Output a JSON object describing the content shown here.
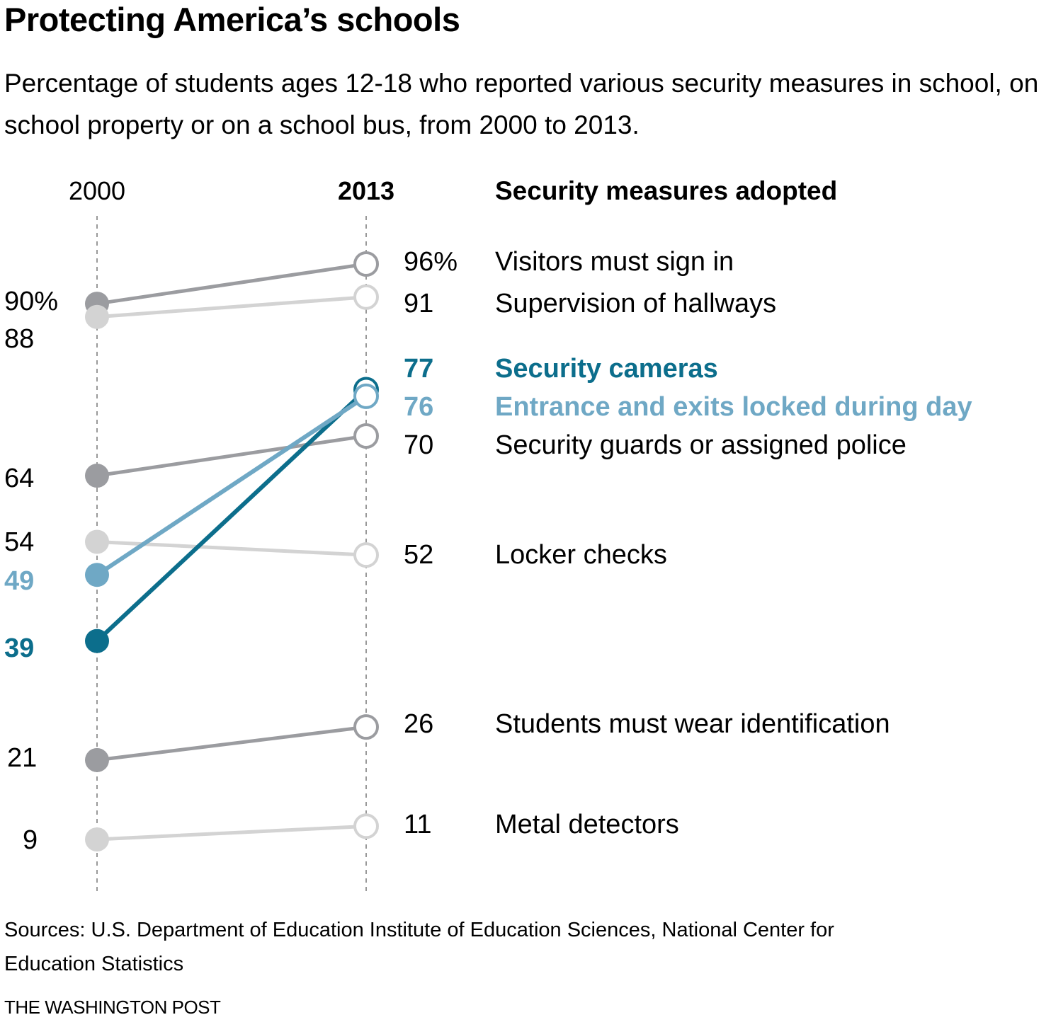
{
  "title": "Protecting America’s schools",
  "subtitle": "Percentage of students ages 12-18 who reported various security measures in school, on school property or on a school bus, from 2000 to 2013.",
  "source": "Sources: U.S. Department of Education Institute of Education Sciences, National Center for Education Statistics",
  "credit": "THE WASHINGTON POST",
  "colors": {
    "dark_gray": "#9b9ca0",
    "light_gray": "#d3d3d3",
    "dark_teal": "#0c6e8c",
    "light_teal": "#6fa8c5",
    "axis": "#999999",
    "text": "#000000"
  },
  "chart_data": {
    "type": "line",
    "subtype": "slope",
    "title": "Protecting America’s schools",
    "x": [
      "2000",
      "2013"
    ],
    "x_labels": [
      {
        "label": "2000",
        "bold": false
      },
      {
        "label": "2013",
        "bold": true
      }
    ],
    "legend_header": "Security measures adopted",
    "ylabel": "Percentage of students",
    "ylim": [
      9,
      96
    ],
    "grid": false,
    "series": [
      {
        "name": "Visitors must sign in",
        "values": [
          90,
          96
        ],
        "labels": [
          "90%",
          "96%"
        ],
        "color": "dark_gray",
        "highlight": false
      },
      {
        "name": "Supervision of hallways",
        "values": [
          88,
          91
        ],
        "labels": [
          "88",
          "91"
        ],
        "color": "light_gray",
        "highlight": false
      },
      {
        "name": "Security cameras",
        "values": [
          39,
          77
        ],
        "labels": [
          "39",
          "77"
        ],
        "color": "dark_teal",
        "highlight": true
      },
      {
        "name": "Entrance and exits locked during day",
        "values": [
          49,
          76
        ],
        "labels": [
          "49",
          "76"
        ],
        "color": "light_teal",
        "highlight": true
      },
      {
        "name": "Security guards or assigned police",
        "values": [
          64,
          70
        ],
        "labels": [
          "64",
          "70"
        ],
        "color": "dark_gray",
        "highlight": false
      },
      {
        "name": "Locker checks",
        "values": [
          54,
          52
        ],
        "labels": [
          "54",
          "52"
        ],
        "color": "light_gray",
        "highlight": false
      },
      {
        "name": "Students must wear identification",
        "values": [
          21,
          26
        ],
        "labels": [
          "21",
          "26"
        ],
        "color": "dark_gray",
        "highlight": false
      },
      {
        "name": "Metal detectors",
        "values": [
          9,
          11
        ],
        "labels": [
          "9",
          "11"
        ],
        "color": "light_gray",
        "highlight": false
      }
    ]
  }
}
